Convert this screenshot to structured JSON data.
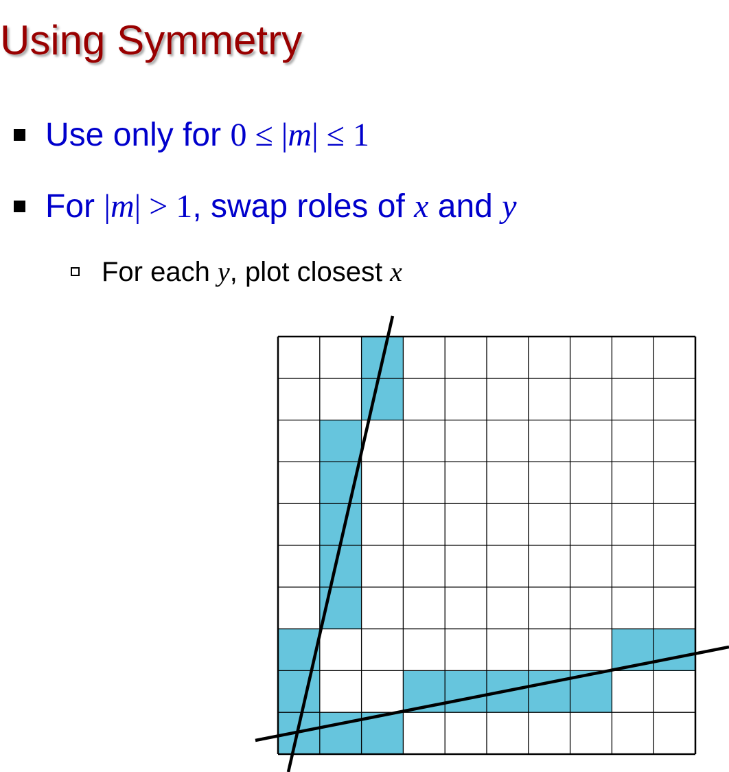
{
  "title": "Using Symmetry",
  "bullets": [
    {
      "lead": "Use only for ",
      "math": "0 ≤ |",
      "math_var": "m",
      "math_tail": "| ≤ 1"
    },
    {
      "lead": "For ",
      "math_open": "|",
      "math_var": "m",
      "math_close": "| > 1",
      "mid": ", swap roles of ",
      "var1": "x",
      "and": " and ",
      "var2": "y"
    }
  ],
  "sub_bullet": {
    "lead": "For each ",
    "var1": "y",
    "mid": ", plot closest ",
    "var2": "x"
  },
  "diagram": {
    "columns": 10,
    "rows": 10,
    "fill_color": "#66c5dd",
    "grid_color": "#000000",
    "steep_line_cells": [
      [
        2,
        0
      ],
      [
        2,
        1
      ],
      [
        1,
        2
      ],
      [
        1,
        3
      ],
      [
        1,
        4
      ],
      [
        1,
        5
      ],
      [
        1,
        6
      ],
      [
        0,
        7
      ],
      [
        0,
        8
      ],
      [
        0,
        9
      ]
    ],
    "shallow_line_cells": [
      [
        0,
        9
      ],
      [
        1,
        9
      ],
      [
        2,
        9
      ],
      [
        3,
        8
      ],
      [
        4,
        8
      ],
      [
        5,
        8
      ],
      [
        6,
        8
      ],
      [
        7,
        8
      ],
      [
        8,
        7
      ],
      [
        9,
        7
      ]
    ]
  },
  "colors": {
    "title": "#990000",
    "bullet_text": "#0000cc",
    "sub_bullet_text": "#000000",
    "cell_fill": "#66c5dd"
  }
}
